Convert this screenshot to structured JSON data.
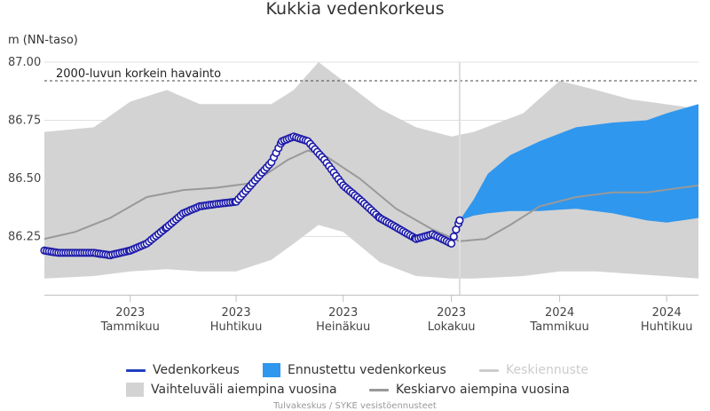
{
  "chart_data": {
    "type": "line",
    "title": "Kukkia vedenkorkeus",
    "ylabel": "m (NN-taso)",
    "ylim": [
      86.0,
      87.0
    ],
    "yticks": [
      "86.25",
      "86.50",
      "86.75",
      "87.00"
    ],
    "xlim": [
      "2022-10-20",
      "2024-04-28"
    ],
    "xticks": [
      {
        "date": "2023-01-01",
        "year": "2023",
        "month": "Tammikuu"
      },
      {
        "date": "2023-04-01",
        "year": "2023",
        "month": "Huhtikuu"
      },
      {
        "date": "2023-07-01",
        "year": "2023",
        "month": "Heinäkuu"
      },
      {
        "date": "2023-10-01",
        "year": "2023",
        "month": "Lokakuu"
      },
      {
        "date": "2024-01-01",
        "year": "2024",
        "month": "Tammikuu"
      },
      {
        "date": "2024-04-01",
        "year": "2024",
        "month": "Huhtikuu"
      }
    ],
    "today": "2023-10-08",
    "reference_line": {
      "label": "2000-luvun korkein havainto",
      "value": 86.92
    },
    "grid": true,
    "legend_position": "bottom",
    "series": [
      {
        "name": "Vedenkorkeus",
        "color": "#1f3fbf",
        "marker_fill": "#ffffff",
        "marker_stroke": "#1c1aa8",
        "points": [
          [
            "2022-10-20",
            86.19
          ],
          [
            "2022-11-01",
            86.18
          ],
          [
            "2022-11-15",
            86.18
          ],
          [
            "2022-12-01",
            86.18
          ],
          [
            "2022-12-15",
            86.17
          ],
          [
            "2023-01-01",
            86.19
          ],
          [
            "2023-01-15",
            86.22
          ],
          [
            "2023-02-01",
            86.29
          ],
          [
            "2023-02-15",
            86.35
          ],
          [
            "2023-03-01",
            86.38
          ],
          [
            "2023-03-15",
            86.39
          ],
          [
            "2023-04-01",
            86.4
          ],
          [
            "2023-04-15",
            86.48
          ],
          [
            "2023-05-01",
            86.57
          ],
          [
            "2023-05-10",
            86.66
          ],
          [
            "2023-05-20",
            86.68
          ],
          [
            "2023-06-01",
            86.66
          ],
          [
            "2023-06-15",
            86.58
          ],
          [
            "2023-07-01",
            86.47
          ],
          [
            "2023-07-15",
            86.41
          ],
          [
            "2023-08-01",
            86.33
          ],
          [
            "2023-08-15",
            86.29
          ],
          [
            "2023-09-01",
            86.24
          ],
          [
            "2023-09-15",
            86.26
          ],
          [
            "2023-10-01",
            86.22
          ],
          [
            "2023-10-05",
            86.28
          ],
          [
            "2023-10-08",
            86.32
          ]
        ]
      },
      {
        "name": "Ennustettu vedenkorkeus",
        "color": "#2f97ee",
        "type": "band",
        "points": [
          [
            "2023-10-08",
            86.32,
            86.32
          ],
          [
            "2023-10-20",
            86.34,
            86.41
          ],
          [
            "2023-11-01",
            86.35,
            86.52
          ],
          [
            "2023-11-20",
            86.36,
            86.6
          ],
          [
            "2023-12-15",
            86.36,
            86.66
          ],
          [
            "2024-01-15",
            86.37,
            86.72
          ],
          [
            "2024-02-15",
            86.35,
            86.74
          ],
          [
            "2024-03-15",
            86.32,
            86.75
          ],
          [
            "2024-04-01",
            86.31,
            86.78
          ],
          [
            "2024-04-28",
            86.33,
            86.82
          ]
        ]
      },
      {
        "name": "Keskiennuste",
        "color": "#cccccc",
        "disabled": true
      },
      {
        "name": "Vaihteluväli aiempina vuosina",
        "color": "#d3d3d3",
        "type": "band",
        "points": [
          [
            "2022-10-20",
            86.07,
            86.7
          ],
          [
            "2022-12-01",
            86.08,
            86.72
          ],
          [
            "2023-01-01",
            86.1,
            86.83
          ],
          [
            "2023-02-01",
            86.11,
            86.88
          ],
          [
            "2023-03-01",
            86.1,
            86.82
          ],
          [
            "2023-04-01",
            86.1,
            86.82
          ],
          [
            "2023-05-01",
            86.15,
            86.82
          ],
          [
            "2023-05-20",
            86.22,
            86.88
          ],
          [
            "2023-06-10",
            86.3,
            87.0
          ],
          [
            "2023-07-01",
            86.27,
            86.92
          ],
          [
            "2023-08-01",
            86.14,
            86.8
          ],
          [
            "2023-09-01",
            86.08,
            86.72
          ],
          [
            "2023-10-01",
            86.07,
            86.68
          ],
          [
            "2023-10-20",
            86.07,
            86.7
          ],
          [
            "2023-12-01",
            86.08,
            86.78
          ],
          [
            "2024-01-01",
            86.1,
            86.92
          ],
          [
            "2024-02-01",
            86.1,
            86.88
          ],
          [
            "2024-03-01",
            86.09,
            86.84
          ],
          [
            "2024-04-28",
            86.07,
            86.8
          ]
        ]
      },
      {
        "name": "Keskiarvo aiempina vuosina",
        "color": "#999999",
        "points": [
          [
            "2022-10-20",
            86.24
          ],
          [
            "2022-11-15",
            86.27
          ],
          [
            "2022-12-15",
            86.33
          ],
          [
            "2023-01-15",
            86.42
          ],
          [
            "2023-02-15",
            86.45
          ],
          [
            "2023-03-15",
            86.46
          ],
          [
            "2023-04-15",
            86.48
          ],
          [
            "2023-05-15",
            86.58
          ],
          [
            "2023-06-01",
            86.62
          ],
          [
            "2023-06-15",
            86.6
          ],
          [
            "2023-07-15",
            86.5
          ],
          [
            "2023-08-15",
            86.37
          ],
          [
            "2023-09-15",
            86.28
          ],
          [
            "2023-10-08",
            86.23
          ],
          [
            "2023-10-30",
            86.24
          ],
          [
            "2023-11-20",
            86.3
          ],
          [
            "2023-12-15",
            86.38
          ],
          [
            "2024-01-15",
            86.42
          ],
          [
            "2024-02-15",
            86.44
          ],
          [
            "2024-03-15",
            86.44
          ],
          [
            "2024-04-28",
            86.47
          ]
        ]
      }
    ]
  },
  "credits": "Tulvakeskus / SYKE vesistöennusteet"
}
